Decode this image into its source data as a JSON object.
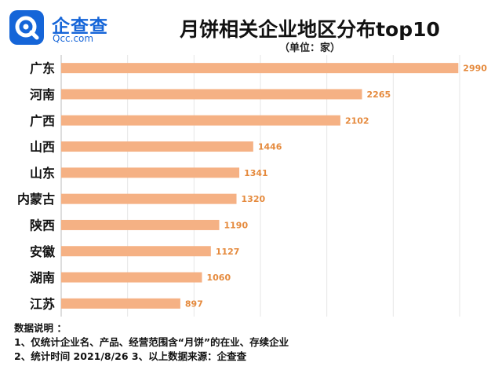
{
  "brand": {
    "name": "企查查",
    "domain": "Qcc.com",
    "color": "#1565d8"
  },
  "header": {
    "title": "月饼相关企业地区分布top10",
    "subtitle": "（单位：家）"
  },
  "notes": {
    "heading": "数据说明 ：",
    "line1": "1、仅统计企业名、产品、经营范围含“月饼”的在业、存续企业",
    "line2": "2、统计时间 2021/8/26        3、以上数据来源：企查查"
  },
  "chart_data": {
    "type": "bar",
    "orientation": "horizontal",
    "title": "月饼相关企业地区分布top10",
    "unit": "（单位：家）",
    "categories": [
      "广东",
      "河南",
      "广西",
      "山西",
      "山东",
      "内蒙古",
      "陕西",
      "安徽",
      "湖南",
      "江苏"
    ],
    "values": [
      2990,
      2265,
      2102,
      1446,
      1341,
      1320,
      1190,
      1127,
      1060,
      897
    ],
    "xlim": [
      0,
      3000
    ],
    "grid": true,
    "bar_color": "#f5b184",
    "label_color": "#e58a3d"
  }
}
